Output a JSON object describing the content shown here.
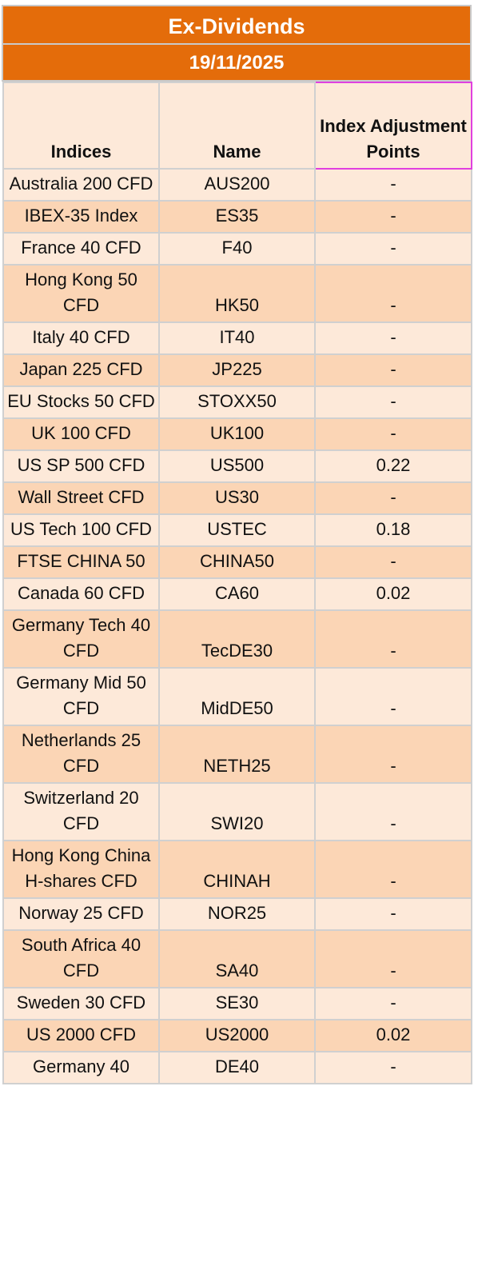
{
  "title": "Ex-Dividends",
  "date": "19/11/2025",
  "columns": {
    "indices": "Indices",
    "name": "Name",
    "points": "Index Adjustment Points"
  },
  "rows": [
    {
      "index": "Australia 200 CFD",
      "name": "AUS200",
      "points": "-"
    },
    {
      "index": "IBEX-35 Index",
      "name": "ES35",
      "points": "-"
    },
    {
      "index": "France 40 CFD",
      "name": "F40",
      "points": "-"
    },
    {
      "index": "Hong Kong 50 CFD",
      "name": "HK50",
      "points": "-"
    },
    {
      "index": "Italy 40 CFD",
      "name": "IT40",
      "points": "-"
    },
    {
      "index": "Japan 225 CFD",
      "name": "JP225",
      "points": "-"
    },
    {
      "index": "EU Stocks 50 CFD",
      "name": "STOXX50",
      "points": "-"
    },
    {
      "index": "UK 100 CFD",
      "name": "UK100",
      "points": "-"
    },
    {
      "index": "US SP 500 CFD",
      "name": "US500",
      "points": "0.22"
    },
    {
      "index": "Wall Street CFD",
      "name": "US30",
      "points": "-"
    },
    {
      "index": "US Tech 100 CFD",
      "name": "USTEC",
      "points": "0.18"
    },
    {
      "index": "FTSE CHINA 50",
      "name": "CHINA50",
      "points": "-"
    },
    {
      "index": "Canada 60 CFD",
      "name": "CA60",
      "points": "0.02"
    },
    {
      "index": "Germany Tech 40 CFD",
      "name": "TecDE30",
      "points": "-"
    },
    {
      "index": "Germany Mid 50 CFD",
      "name": "MidDE50",
      "points": "-"
    },
    {
      "index": "Netherlands 25 CFD",
      "name": "NETH25",
      "points": "-"
    },
    {
      "index": "Switzerland 20 CFD",
      "name": "SWI20",
      "points": "-"
    },
    {
      "index": "Hong Kong China H-shares CFD",
      "name": "CHINAH",
      "points": "-"
    },
    {
      "index": "Norway 25 CFD",
      "name": "NOR25",
      "points": "-"
    },
    {
      "index": "South Africa 40 CFD",
      "name": "SA40",
      "points": "-"
    },
    {
      "index": "Sweden 30 CFD",
      "name": "SE30",
      "points": "-"
    },
    {
      "index": "US 2000 CFD",
      "name": "US2000",
      "points": "0.02"
    },
    {
      "index": "Germany 40",
      "name": "DE40",
      "points": "-"
    }
  ]
}
